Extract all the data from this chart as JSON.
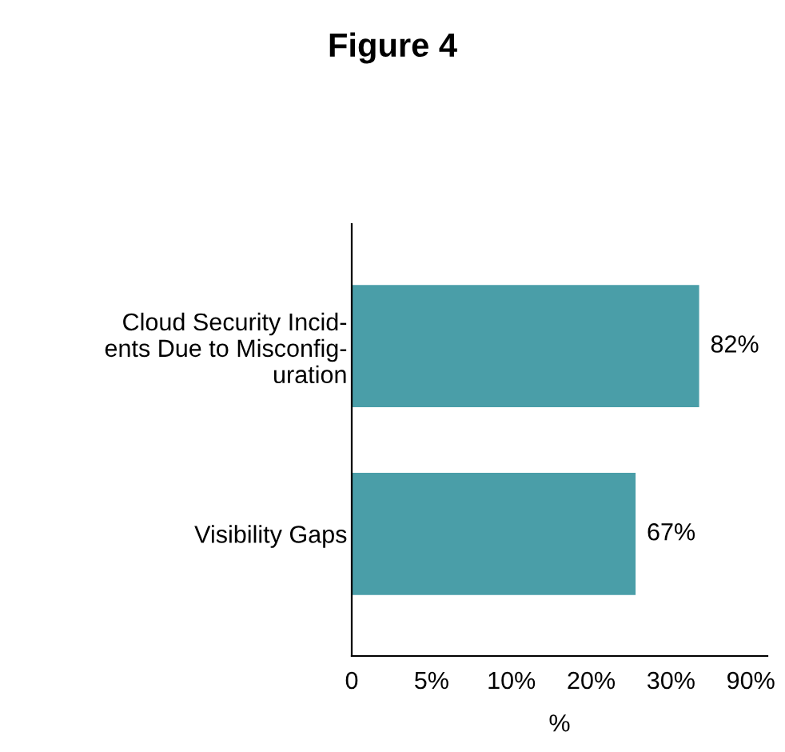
{
  "chart_data": {
    "type": "bar",
    "orientation": "horizontal",
    "title": "Figure 4",
    "xlabel": "%",
    "categories": [
      "Cloud Security Incid-\nents Due to Misconfig-\nuration",
      "Visibility Gaps"
    ],
    "values": [
      82,
      67
    ],
    "color": "#4a9ea8",
    "value_labels": [
      "82%",
      "67%"
    ],
    "annotations": [
      "0",
      "5%",
      "10%",
      "20%",
      "30%",
      "90%"
    ],
    "grid": false,
    "legend": false
  }
}
